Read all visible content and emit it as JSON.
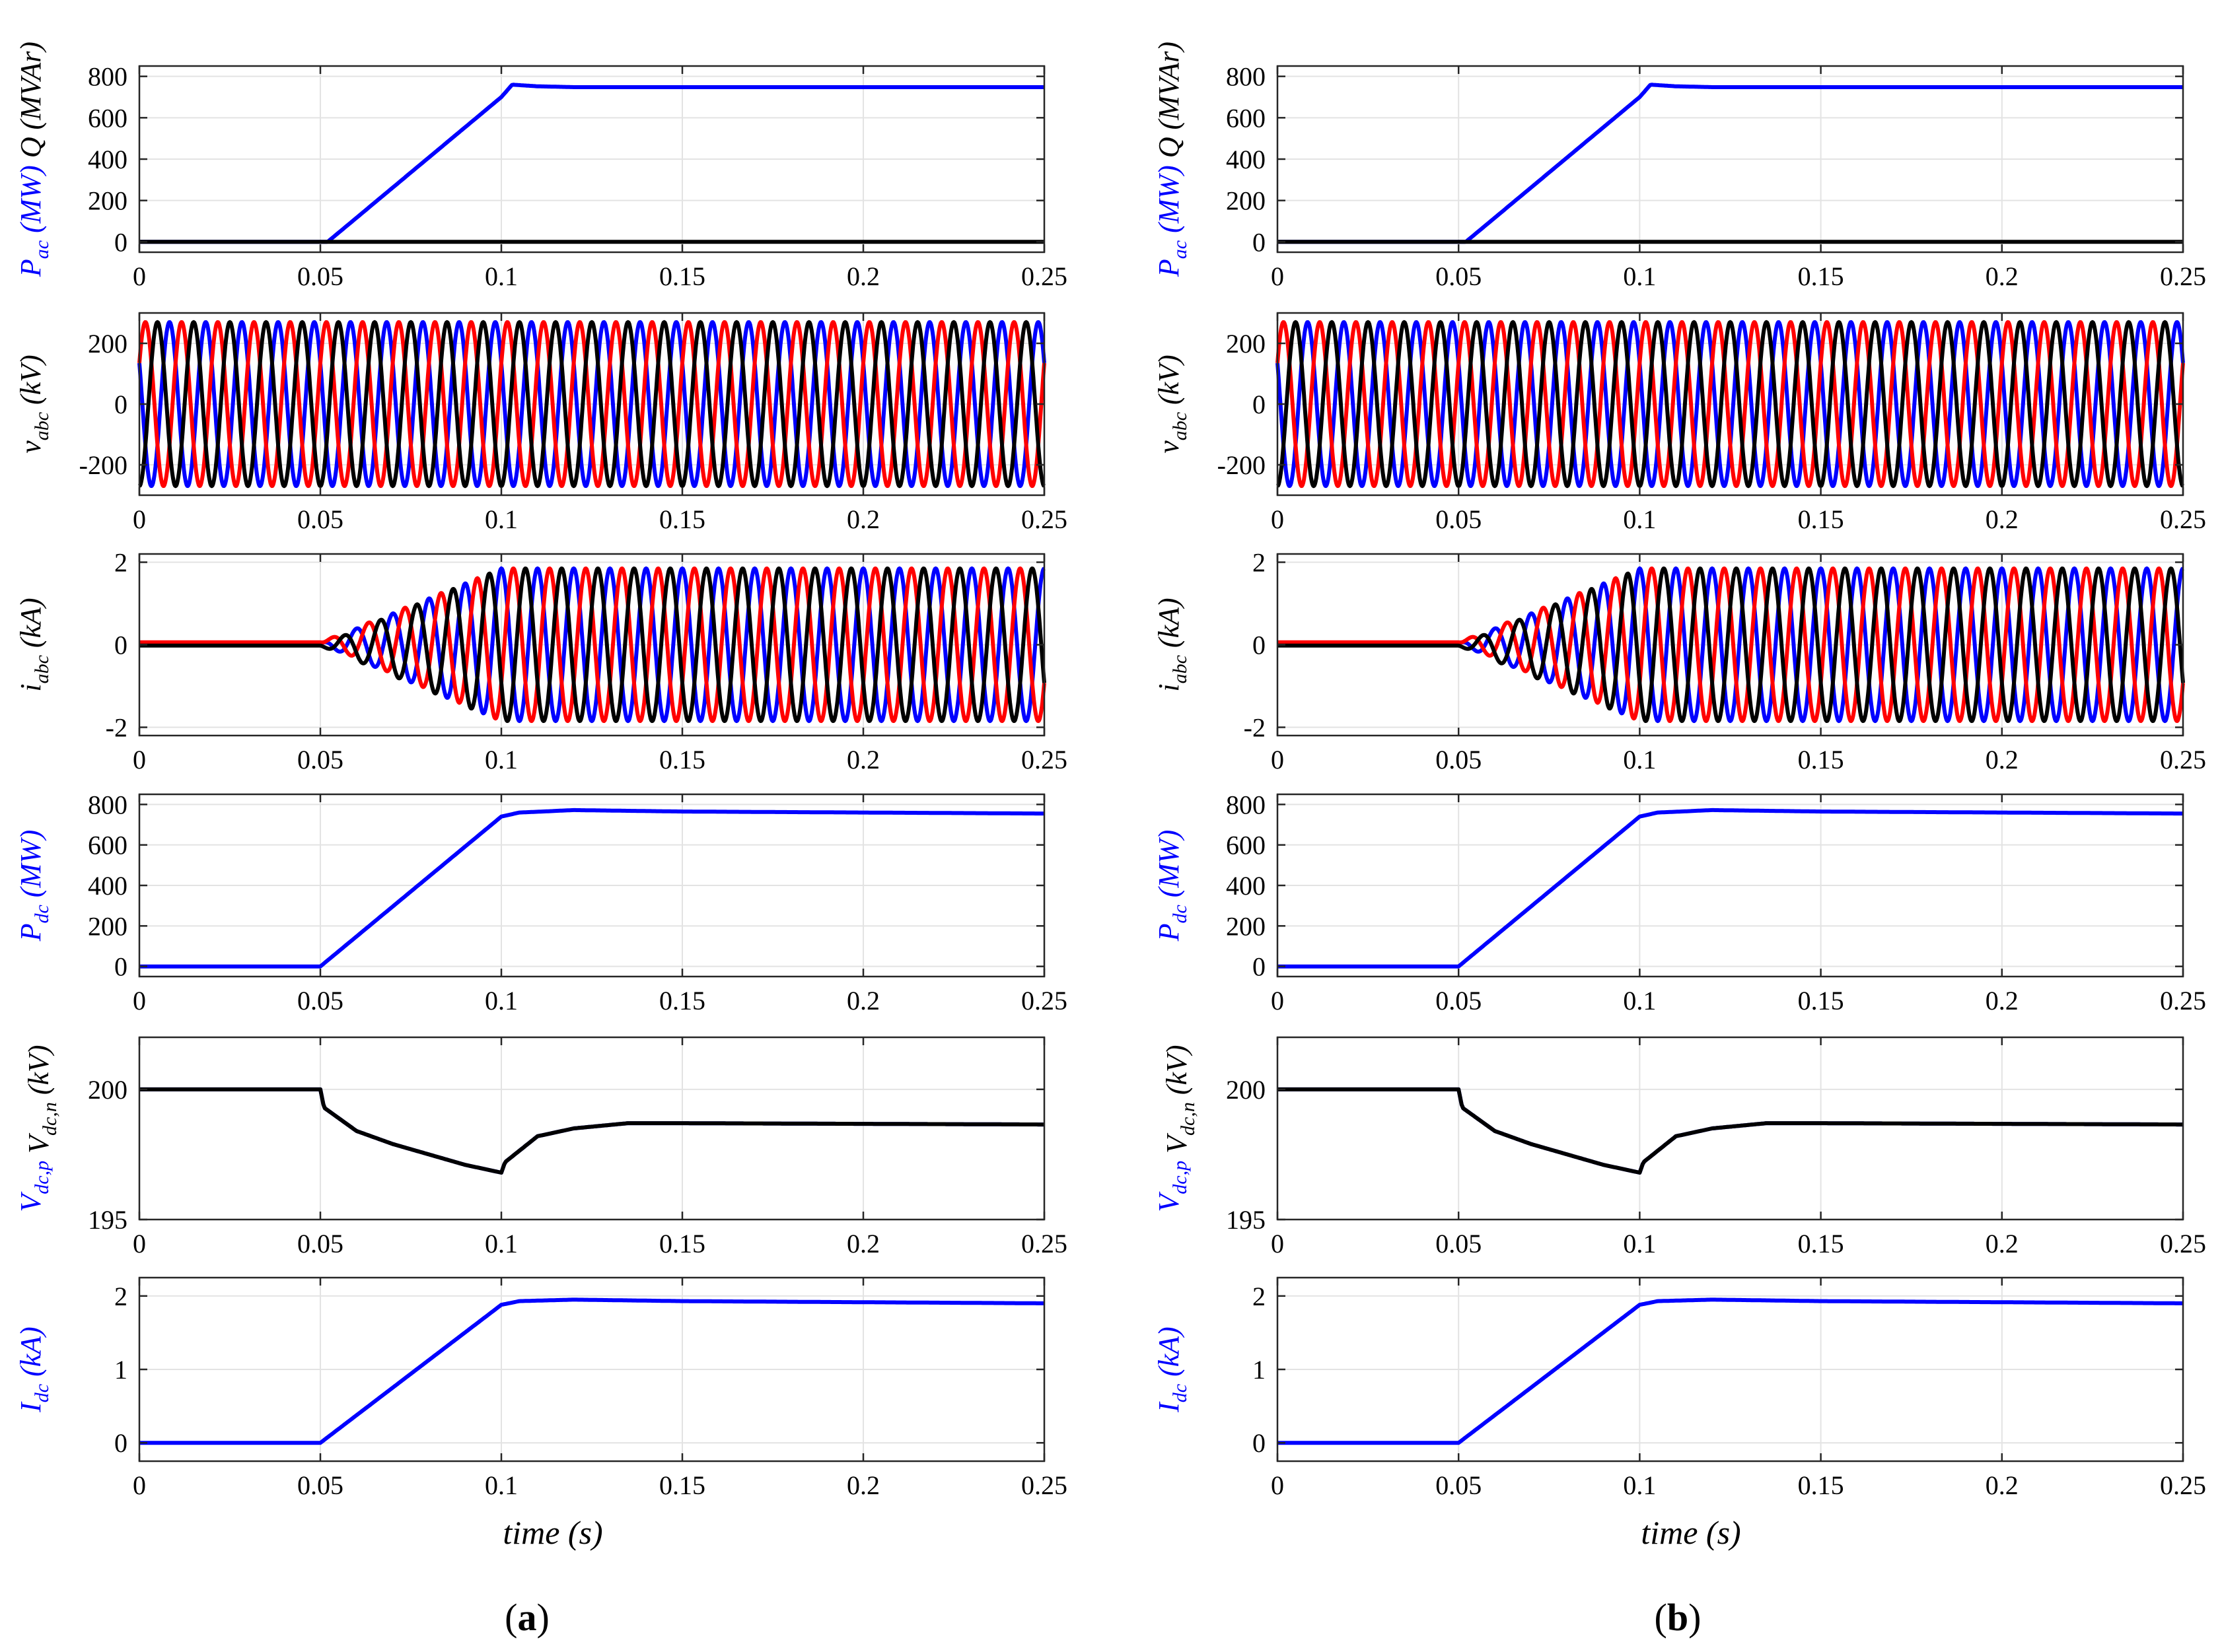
{
  "colors": {
    "blue": "#0000ff",
    "red": "#ff0000",
    "black": "#000000"
  },
  "x_label": "time (s)",
  "panels": [
    {
      "caption": "(a)",
      "caption_letter": "a"
    },
    {
      "caption": "(b)",
      "caption_letter": "b"
    }
  ],
  "chart_data": [
    {
      "type": "line",
      "panel": "a",
      "row": 1,
      "ylabel_parts": [
        {
          "text": "P",
          "sub": "ac",
          "unit": " (MW)",
          "color": "blue"
        },
        {
          "text": "Q",
          "sub": "",
          "unit": " (MVAr)",
          "color": "black"
        }
      ],
      "xlim": [
        0,
        0.25
      ],
      "ylim": [
        -50,
        850
      ],
      "xticks": [
        "0",
        "0.05",
        "0.1",
        "0.15",
        "0.2",
        "0.25"
      ],
      "yticks": [
        "0",
        "200",
        "400",
        "600",
        "800"
      ],
      "series": [
        {
          "name": "Pac",
          "color": "blue",
          "x": [
            0,
            0.052,
            0.1,
            0.103,
            0.11,
            0.12,
            0.25
          ],
          "values": [
            0,
            0,
            700,
            760,
            752,
            748,
            748
          ]
        },
        {
          "name": "Q",
          "color": "black",
          "x": [
            0,
            0.25
          ],
          "values": [
            0,
            0
          ]
        }
      ]
    },
    {
      "type": "line",
      "panel": "a",
      "row": 2,
      "ylabel_parts": [
        {
          "text": "v",
          "sub": "abc",
          "unit": " (kV)",
          "color": "black"
        }
      ],
      "xlim": [
        0,
        0.25
      ],
      "ylim": [
        -300,
        300
      ],
      "xticks": [
        "0",
        "0.05",
        "0.1",
        "0.15",
        "0.2",
        "0.25"
      ],
      "yticks": [
        "-200",
        "0",
        "200"
      ],
      "series": [
        {
          "name": "va",
          "color": "blue",
          "waveform": "sine",
          "amplitude": 270,
          "frequency": 100,
          "phase_deg": 150
        },
        {
          "name": "vb",
          "color": "red",
          "waveform": "sine",
          "amplitude": 270,
          "frequency": 100,
          "phase_deg": 30
        },
        {
          "name": "vc",
          "color": "black",
          "waveform": "sine",
          "amplitude": 270,
          "frequency": 100,
          "phase_deg": -90
        }
      ]
    },
    {
      "type": "line",
      "panel": "a",
      "row": 3,
      "ylabel_parts": [
        {
          "text": "i",
          "sub": "abc",
          "unit": " (kA)",
          "color": "black"
        }
      ],
      "xlim": [
        0,
        0.25
      ],
      "ylim": [
        -2.2,
        2.2
      ],
      "xticks": [
        "0",
        "0.05",
        "0.1",
        "0.15",
        "0.2",
        "0.25"
      ],
      "yticks": [
        "-2",
        "0",
        "2"
      ],
      "series": [
        {
          "name": "ia",
          "color": "blue",
          "waveform": "sine",
          "amplitude": 1.85,
          "frequency": 100,
          "phase_deg": 90,
          "ramp_start": 0.05,
          "ramp_end": 0.1,
          "offset": 0.03
        },
        {
          "name": "ib",
          "color": "red",
          "waveform": "sine",
          "amplitude": 1.85,
          "frequency": 100,
          "phase_deg": -30,
          "ramp_start": 0.05,
          "ramp_end": 0.1,
          "offset": 0.06
        },
        {
          "name": "ic",
          "color": "black",
          "waveform": "sine",
          "amplitude": 1.85,
          "frequency": 100,
          "phase_deg": 210,
          "ramp_start": 0.05,
          "ramp_end": 0.1,
          "offset": -0.02
        }
      ]
    },
    {
      "type": "line",
      "panel": "a",
      "row": 4,
      "ylabel_parts": [
        {
          "text": "P",
          "sub": "dc",
          "unit": " (MW)",
          "color": "blue"
        }
      ],
      "xlim": [
        0,
        0.25
      ],
      "ylim": [
        -50,
        850
      ],
      "xticks": [
        "0",
        "0.05",
        "0.1",
        "0.15",
        "0.2",
        "0.25"
      ],
      "yticks": [
        "0",
        "200",
        "400",
        "600",
        "800"
      ],
      "series": [
        {
          "name": "Pdc",
          "color": "blue",
          "x": [
            0,
            0.05,
            0.1,
            0.105,
            0.12,
            0.15,
            0.25
          ],
          "values": [
            0,
            0,
            740,
            760,
            772,
            765,
            755
          ]
        }
      ]
    },
    {
      "type": "line",
      "panel": "a",
      "row": 5,
      "ylabel_parts": [
        {
          "text": "V",
          "sub": "dc,p",
          "unit": "",
          "color": "blue"
        },
        {
          "text": "V",
          "sub": "dc,n",
          "unit": " (kV)",
          "color": "black"
        }
      ],
      "xlim": [
        0,
        0.25
      ],
      "ylim": [
        195,
        202
      ],
      "xticks": [
        "0",
        "0.05",
        "0.1",
        "0.15",
        "0.2",
        "0.25"
      ],
      "yticks": [
        "195",
        "200"
      ],
      "series": [
        {
          "name": "Vdcp",
          "color": "blue",
          "x": [
            0,
            0.05,
            0.051,
            0.06,
            0.07,
            0.08,
            0.09,
            0.1,
            0.101,
            0.11,
            0.12,
            0.135,
            0.15,
            0.25
          ],
          "values": [
            200,
            200,
            199.3,
            198.4,
            197.9,
            197.5,
            197.1,
            196.8,
            197.2,
            198.2,
            198.5,
            198.7,
            198.7,
            198.65
          ]
        },
        {
          "name": "Vdcn",
          "color": "black",
          "x": [
            0,
            0.05,
            0.051,
            0.06,
            0.07,
            0.08,
            0.09,
            0.1,
            0.101,
            0.11,
            0.12,
            0.135,
            0.15,
            0.25
          ],
          "values": [
            200,
            200,
            199.3,
            198.4,
            197.9,
            197.5,
            197.1,
            196.8,
            197.2,
            198.2,
            198.5,
            198.7,
            198.7,
            198.65
          ]
        }
      ]
    },
    {
      "type": "line",
      "panel": "a",
      "row": 6,
      "ylabel_parts": [
        {
          "text": "I",
          "sub": "dc",
          "unit": " (kA)",
          "color": "blue"
        }
      ],
      "xlim": [
        0,
        0.25
      ],
      "ylim": [
        -0.25,
        2.25
      ],
      "xticks": [
        "0",
        "0.05",
        "0.1",
        "0.15",
        "0.2",
        "0.25"
      ],
      "yticks": [
        "0",
        "1",
        "2"
      ],
      "series": [
        {
          "name": "Idc",
          "color": "blue",
          "x": [
            0,
            0.05,
            0.1,
            0.105,
            0.12,
            0.15,
            0.25
          ],
          "values": [
            0,
            0,
            1.88,
            1.93,
            1.95,
            1.93,
            1.9
          ]
        }
      ]
    },
    {
      "type": "line",
      "panel": "b",
      "row": 1,
      "ylabel_parts": [
        {
          "text": "P",
          "sub": "ac",
          "unit": " (MW)",
          "color": "blue"
        },
        {
          "text": "Q",
          "sub": "",
          "unit": " (MVAr)",
          "color": "black"
        }
      ],
      "xlim": [
        0,
        0.25
      ],
      "ylim": [
        -50,
        850
      ],
      "xticks": [
        "0",
        "0.05",
        "0.1",
        "0.15",
        "0.2",
        "0.25"
      ],
      "yticks": [
        "0",
        "200",
        "400",
        "600",
        "800"
      ],
      "series": [
        {
          "name": "Pac",
          "color": "blue",
          "x": [
            0,
            0.052,
            0.1,
            0.103,
            0.11,
            0.12,
            0.25
          ],
          "values": [
            0,
            0,
            700,
            760,
            752,
            748,
            748
          ]
        },
        {
          "name": "Q",
          "color": "black",
          "x": [
            0,
            0.25
          ],
          "values": [
            0,
            0
          ]
        }
      ]
    },
    {
      "type": "line",
      "panel": "b",
      "row": 2,
      "ylabel_parts": [
        {
          "text": "v",
          "sub": "abc",
          "unit": " (kV)",
          "color": "black"
        }
      ],
      "xlim": [
        0,
        0.25
      ],
      "ylim": [
        -300,
        300
      ],
      "xticks": [
        "0",
        "0.05",
        "0.1",
        "0.15",
        "0.2",
        "0.25"
      ],
      "yticks": [
        "-200",
        "0",
        "200"
      ],
      "series": [
        {
          "name": "va",
          "color": "blue",
          "waveform": "sine",
          "amplitude": 270,
          "frequency": 100,
          "phase_deg": 150
        },
        {
          "name": "vb",
          "color": "red",
          "waveform": "sine",
          "amplitude": 270,
          "frequency": 100,
          "phase_deg": 30
        },
        {
          "name": "vc",
          "color": "black",
          "waveform": "sine",
          "amplitude": 270,
          "frequency": 100,
          "phase_deg": -90
        }
      ]
    },
    {
      "type": "line",
      "panel": "b",
      "row": 3,
      "ylabel_parts": [
        {
          "text": "i",
          "sub": "abc",
          "unit": " (kA)",
          "color": "black"
        }
      ],
      "xlim": [
        0,
        0.25
      ],
      "ylim": [
        -2.2,
        2.2
      ],
      "xticks": [
        "0",
        "0.05",
        "0.1",
        "0.15",
        "0.2",
        "0.25"
      ],
      "yticks": [
        "-2",
        "0",
        "2"
      ],
      "series": [
        {
          "name": "ia",
          "color": "blue",
          "waveform": "sine",
          "amplitude": 1.85,
          "frequency": 100,
          "phase_deg": 90,
          "ramp_start": 0.05,
          "ramp_end": 0.1,
          "offset": 0.03
        },
        {
          "name": "ib",
          "color": "red",
          "waveform": "sine",
          "amplitude": 1.85,
          "frequency": 100,
          "phase_deg": -30,
          "ramp_start": 0.05,
          "ramp_end": 0.1,
          "offset": 0.06
        },
        {
          "name": "ic",
          "color": "black",
          "waveform": "sine",
          "amplitude": 1.85,
          "frequency": 100,
          "phase_deg": 210,
          "ramp_start": 0.05,
          "ramp_end": 0.1,
          "offset": -0.02
        }
      ]
    },
    {
      "type": "line",
      "panel": "b",
      "row": 4,
      "ylabel_parts": [
        {
          "text": "P",
          "sub": "dc",
          "unit": " (MW)",
          "color": "blue"
        }
      ],
      "xlim": [
        0,
        0.25
      ],
      "ylim": [
        -50,
        850
      ],
      "xticks": [
        "0",
        "0.05",
        "0.1",
        "0.15",
        "0.2",
        "0.25"
      ],
      "yticks": [
        "0",
        "200",
        "400",
        "600",
        "800"
      ],
      "series": [
        {
          "name": "Pdc",
          "color": "blue",
          "x": [
            0,
            0.05,
            0.1,
            0.105,
            0.12,
            0.15,
            0.25
          ],
          "values": [
            0,
            0,
            740,
            760,
            772,
            765,
            755
          ]
        }
      ]
    },
    {
      "type": "line",
      "panel": "b",
      "row": 5,
      "ylabel_parts": [
        {
          "text": "V",
          "sub": "dc,p",
          "unit": "",
          "color": "blue"
        },
        {
          "text": "V",
          "sub": "dc,n",
          "unit": " (kV)",
          "color": "black"
        }
      ],
      "xlim": [
        0,
        0.25
      ],
      "ylim": [
        195,
        202
      ],
      "xticks": [
        "0",
        "0.05",
        "0.1",
        "0.15",
        "0.2",
        "0.25"
      ],
      "yticks": [
        "195",
        "200"
      ],
      "series": [
        {
          "name": "Vdcp",
          "color": "blue",
          "x": [
            0,
            0.05,
            0.051,
            0.06,
            0.07,
            0.08,
            0.09,
            0.1,
            0.101,
            0.11,
            0.12,
            0.135,
            0.15,
            0.25
          ],
          "values": [
            200,
            200,
            199.3,
            198.4,
            197.9,
            197.5,
            197.1,
            196.8,
            197.2,
            198.2,
            198.5,
            198.7,
            198.7,
            198.65
          ]
        },
        {
          "name": "Vdcn",
          "color": "black",
          "x": [
            0,
            0.05,
            0.051,
            0.06,
            0.07,
            0.08,
            0.09,
            0.1,
            0.101,
            0.11,
            0.12,
            0.135,
            0.15,
            0.25
          ],
          "values": [
            200,
            200,
            199.3,
            198.4,
            197.9,
            197.5,
            197.1,
            196.8,
            197.2,
            198.2,
            198.5,
            198.7,
            198.7,
            198.65
          ]
        }
      ]
    },
    {
      "type": "line",
      "panel": "b",
      "row": 6,
      "ylabel_parts": [
        {
          "text": "I",
          "sub": "dc",
          "unit": " (kA)",
          "color": "blue"
        }
      ],
      "xlim": [
        0,
        0.25
      ],
      "ylim": [
        -0.25,
        2.25
      ],
      "xticks": [
        "0",
        "0.05",
        "0.1",
        "0.15",
        "0.2",
        "0.25"
      ],
      "yticks": [
        "0",
        "1",
        "2"
      ],
      "series": [
        {
          "name": "Idc",
          "color": "blue",
          "x": [
            0,
            0.05,
            0.1,
            0.105,
            0.12,
            0.15,
            0.25
          ],
          "values": [
            0,
            0,
            1.88,
            1.93,
            1.95,
            1.93,
            1.9
          ]
        }
      ]
    }
  ]
}
